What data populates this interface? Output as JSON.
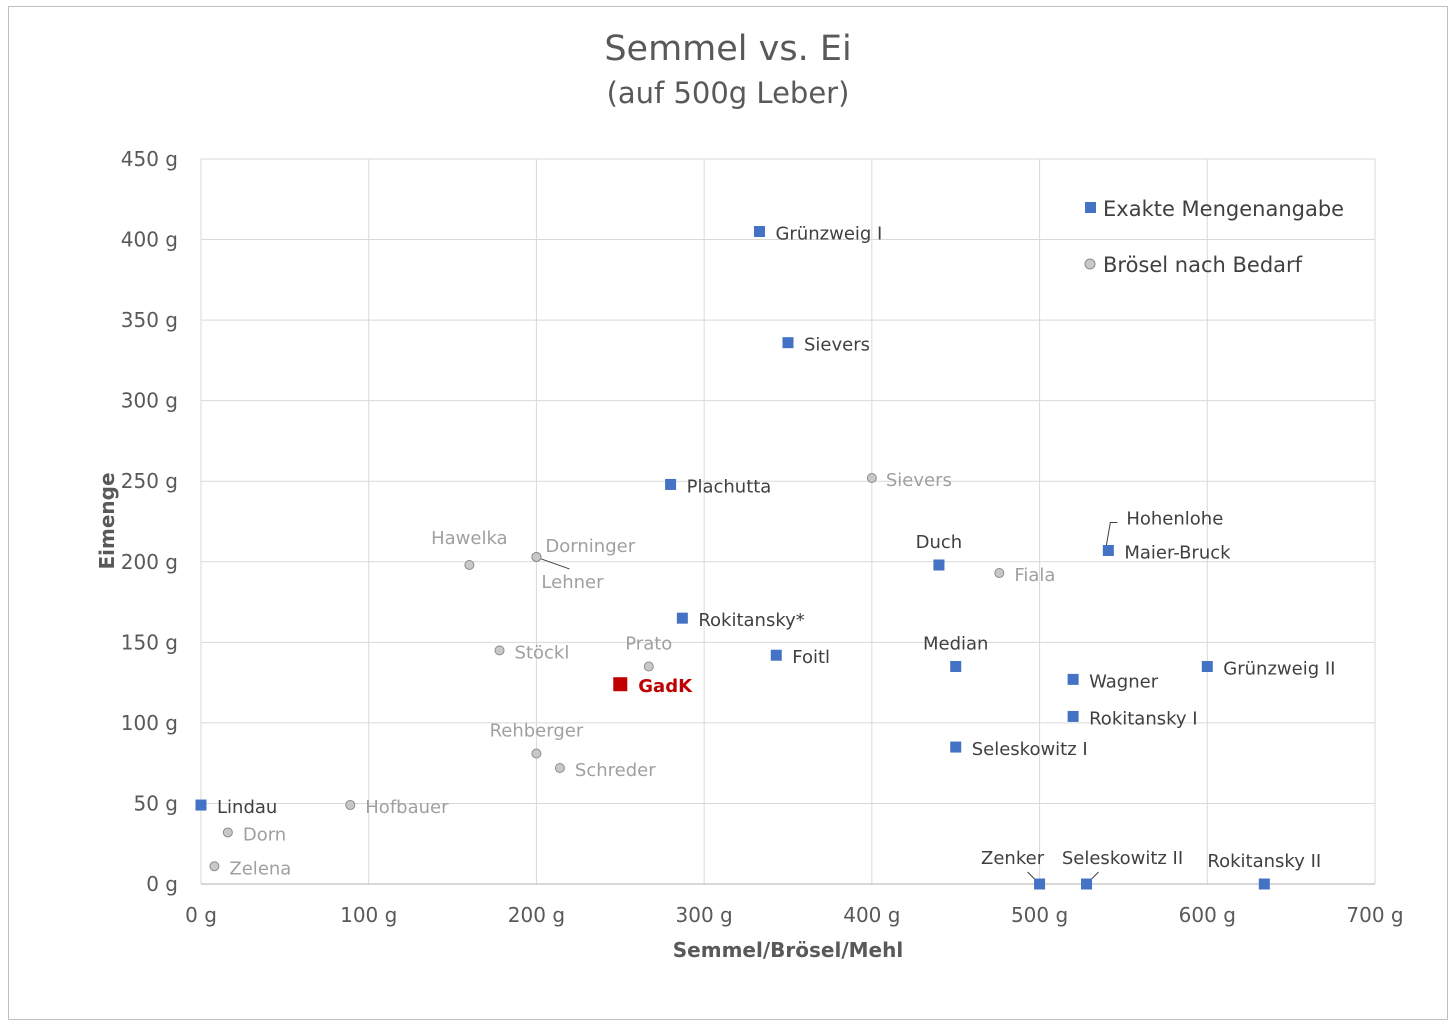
{
  "chart_data": {
    "type": "scatter",
    "title": "Semmel vs. Ei",
    "subtitle": "(auf 500g Leber)",
    "xlabel": "Semmel/Brösel/Mehl",
    "ylabel": "Eimenge",
    "xlim": [
      0,
      700
    ],
    "ylim": [
      0,
      450
    ],
    "x_ticks": [
      {
        "value": 0,
        "label": "0 g"
      },
      {
        "value": 100,
        "label": "100 g"
      },
      {
        "value": 200,
        "label": "200 g"
      },
      {
        "value": 300,
        "label": "300 g"
      },
      {
        "value": 400,
        "label": "400 g"
      },
      {
        "value": 500,
        "label": "500 g"
      },
      {
        "value": 600,
        "label": "600 g"
      },
      {
        "value": 700,
        "label": "700 g"
      }
    ],
    "y_ticks": [
      {
        "value": 0,
        "label": "0 g"
      },
      {
        "value": 50,
        "label": "50 g"
      },
      {
        "value": 100,
        "label": "100 g"
      },
      {
        "value": 150,
        "label": "150 g"
      },
      {
        "value": 200,
        "label": "200 g"
      },
      {
        "value": 250,
        "label": "250 g"
      },
      {
        "value": 300,
        "label": "300 g"
      },
      {
        "value": 350,
        "label": "350 g"
      },
      {
        "value": 400,
        "label": "400 g"
      },
      {
        "value": 450,
        "label": "450 g"
      }
    ],
    "grid": true,
    "legend_position": "top-right",
    "colors": {
      "exact": "#4472c4",
      "approx": "#a5a5a5",
      "highlight": "#c00000"
    },
    "series": [
      {
        "name": "Exakte Mengenangabe",
        "marker": "square",
        "points": [
          {
            "x": 333,
            "y": 405,
            "label": "Grünzweig I"
          },
          {
            "x": 350,
            "y": 336,
            "label": "Sievers"
          },
          {
            "x": 280,
            "y": 248,
            "label": "Plachutta"
          },
          {
            "x": 440,
            "y": 198,
            "label": "Duch"
          },
          {
            "x": 541,
            "y": 207,
            "label": "Maier-Bruck"
          },
          {
            "x": 287,
            "y": 165,
            "label": "Rokitansky*"
          },
          {
            "x": 343,
            "y": 142,
            "label": "Foitl"
          },
          {
            "x": 450,
            "y": 135,
            "label": "Median"
          },
          {
            "x": 520,
            "y": 127,
            "label": "Wagner"
          },
          {
            "x": 600,
            "y": 135,
            "label": "Grünzweig II"
          },
          {
            "x": 520,
            "y": 104,
            "label": "Rokitansky I"
          },
          {
            "x": 450,
            "y": 85,
            "label": "Seleskowitz I"
          },
          {
            "x": 0,
            "y": 49,
            "label": "Lindau"
          },
          {
            "x": 500,
            "y": 0,
            "label": "Zenker"
          },
          {
            "x": 528,
            "y": 0,
            "label": "Seleskowitz II"
          },
          {
            "x": 634,
            "y": 0,
            "label": "Rokitansky II"
          }
        ]
      },
      {
        "name": "Brösel nach Bedarf",
        "marker": "circle",
        "points": [
          {
            "x": 400,
            "y": 252,
            "label": "Sievers"
          },
          {
            "x": 160,
            "y": 198,
            "label": "Hawelka"
          },
          {
            "x": 200,
            "y": 203,
            "label": "Dorninger"
          },
          {
            "x": 200,
            "y": 203,
            "label": "Lehner"
          },
          {
            "x": 476,
            "y": 193,
            "label": "Fiala"
          },
          {
            "x": 178,
            "y": 145,
            "label": "Stöckl"
          },
          {
            "x": 267,
            "y": 135,
            "label": "Prato"
          },
          {
            "x": 200,
            "y": 81,
            "label": "Rehberger"
          },
          {
            "x": 214,
            "y": 72,
            "label": "Schreder"
          },
          {
            "x": 89,
            "y": 49,
            "label": "Hofbauer"
          },
          {
            "x": 16,
            "y": 32,
            "label": "Dorn"
          },
          {
            "x": 8,
            "y": 11,
            "label": "Zelena"
          }
        ]
      },
      {
        "marker": "square-large",
        "points": [
          {
            "x": 250,
            "y": 124,
            "label": "GadK"
          }
        ]
      }
    ],
    "annotations": [
      {
        "text": "Hohenlohe",
        "x": 541,
        "y": 207
      }
    ]
  }
}
